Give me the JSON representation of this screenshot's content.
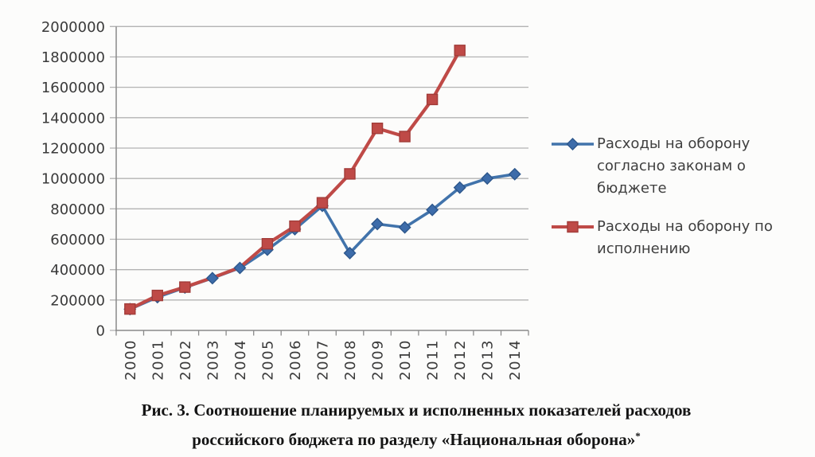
{
  "figure": {
    "caption_line1": "Рис. 3. Соотношение планируемых и исполненных показателей расходов",
    "caption_line2": "российского бюджета по разделу «Национальная оборона»",
    "caption_footnote_mark": "*"
  },
  "chart_data": {
    "type": "line",
    "title": "",
    "xlabel": "",
    "ylabel": "",
    "categories": [
      "2000",
      "2001",
      "2002",
      "2003",
      "2004",
      "2005",
      "2006",
      "2007",
      "2008",
      "2009",
      "2010",
      "2011",
      "2012",
      "2013",
      "2014"
    ],
    "series": [
      {
        "name": "Расходы на оборону согласно законам о бюджете",
        "marker": "diamond",
        "line_color": "#4173ab",
        "marker_fill": "#3d6caa",
        "marker_stroke": "#2d578c",
        "values": [
          140000,
          219000,
          282000,
          344000,
          411000,
          531000,
          666000,
          820000,
          509000,
          700000,
          678000,
          793000,
          940000,
          1000000,
          1028000
        ]
      },
      {
        "name": "Расходы на оборону по исполнению",
        "marker": "square",
        "line_color": "#bf4a47",
        "marker_fill": "#bf4a47",
        "marker_stroke": "#a23c39",
        "values": [
          141000,
          230000,
          285000,
          347000,
          415000,
          570000,
          686000,
          840000,
          1030000,
          1330000,
          1276000,
          1520000,
          1843000,
          null,
          null
        ],
        "marker_hidden_years": [
          "2003",
          "2004"
        ]
      }
    ],
    "ylim": [
      0,
      2000000
    ],
    "ytick_step": 200000,
    "yticks": [
      0,
      200000,
      400000,
      600000,
      800000,
      1000000,
      1200000,
      1400000,
      1600000,
      1800000,
      2000000
    ],
    "grid": true,
    "legend_position": "right",
    "colors": {
      "grid": "#b3b3b3",
      "axis": "#8a8a8a",
      "tick_label": "#3a3a3a",
      "legend_text": "#3f3f3f",
      "caption_text": "#141414",
      "background": "#fcfcfb"
    }
  }
}
